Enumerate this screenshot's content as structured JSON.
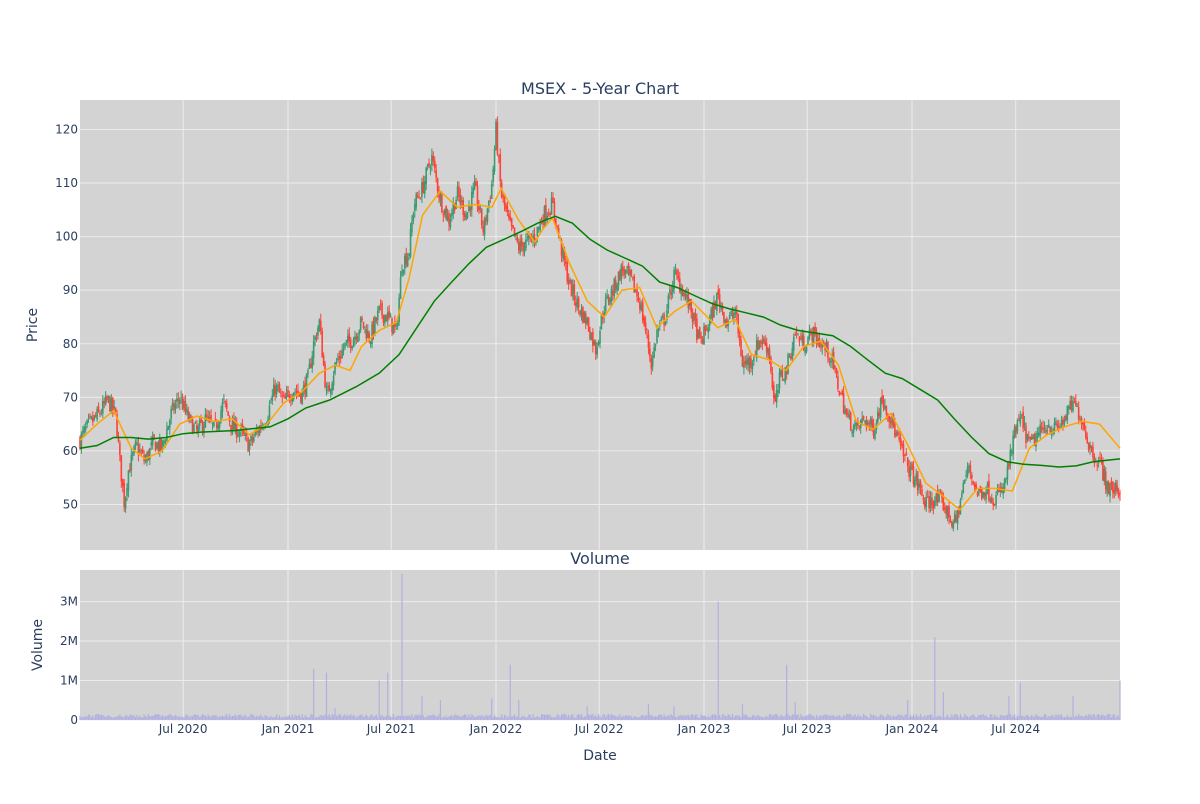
{
  "chart_data": [
    {
      "type": "candlestick",
      "title": "MSEX - 5-Year Chart",
      "ylabel": "Price",
      "ylim": [
        41.5,
        125.5
      ],
      "yticks": [
        50,
        60,
        70,
        80,
        90,
        100,
        110,
        120
      ],
      "x_range": [
        "2020-01-02",
        "2024-12-31"
      ],
      "grid": true,
      "plot_background": "#d3d3d3",
      "colors": {
        "up": "#3d9970",
        "down": "#ff4136",
        "ma_short": "#ffa500",
        "ma_long": "#008000"
      },
      "close_path": [
        [
          "2020-01-02",
          62.0
        ],
        [
          "2020-01-15",
          64.5
        ],
        [
          "2020-02-05",
          67.0
        ],
        [
          "2020-02-20",
          69.5
        ],
        [
          "2020-03-05",
          66.5
        ],
        [
          "2020-03-12",
          58.0
        ],
        [
          "2020-03-20",
          50.0
        ],
        [
          "2020-03-26",
          56.0
        ],
        [
          "2020-04-10",
          61.0
        ],
        [
          "2020-04-25",
          58.0
        ],
        [
          "2020-05-10",
          61.5
        ],
        [
          "2020-05-25",
          60.5
        ],
        [
          "2020-06-10",
          67.0
        ],
        [
          "2020-06-25",
          70.0
        ],
        [
          "2020-07-10",
          66.0
        ],
        [
          "2020-07-25",
          63.5
        ],
        [
          "2020-08-10",
          66.0
        ],
        [
          "2020-08-25",
          64.0
        ],
        [
          "2020-09-10",
          69.0
        ],
        [
          "2020-09-25",
          64.5
        ],
        [
          "2020-10-10",
          63.5
        ],
        [
          "2020-10-25",
          61.0
        ],
        [
          "2020-11-10",
          64.0
        ],
        [
          "2020-11-25",
          66.5
        ],
        [
          "2020-12-10",
          72.0
        ],
        [
          "2020-12-25",
          69.0
        ],
        [
          "2021-01-10",
          71.5
        ],
        [
          "2021-01-25",
          70.5
        ],
        [
          "2021-02-05",
          73.5
        ],
        [
          "2021-02-15",
          80.0
        ],
        [
          "2021-02-25",
          84.0
        ],
        [
          "2021-03-10",
          70.0
        ],
        [
          "2021-03-25",
          76.0
        ],
        [
          "2021-04-10",
          79.5
        ],
        [
          "2021-04-25",
          81.0
        ],
        [
          "2021-05-10",
          84.0
        ],
        [
          "2021-05-25",
          81.0
        ],
        [
          "2021-06-10",
          86.0
        ],
        [
          "2021-06-25",
          85.0
        ],
        [
          "2021-07-10",
          82.0
        ],
        [
          "2021-07-20",
          95.0
        ],
        [
          "2021-08-01",
          97.0
        ],
        [
          "2021-08-10",
          106.0
        ],
        [
          "2021-08-25",
          109.0
        ],
        [
          "2021-09-10",
          115.0
        ],
        [
          "2021-09-25",
          107.0
        ],
        [
          "2021-10-10",
          103.0
        ],
        [
          "2021-10-25",
          108.0
        ],
        [
          "2021-11-10",
          104.0
        ],
        [
          "2021-11-25",
          109.0
        ],
        [
          "2021-12-10",
          101.0
        ],
        [
          "2021-12-25",
          110.0
        ],
        [
          "2022-01-01",
          120.0
        ],
        [
          "2022-01-10",
          108.0
        ],
        [
          "2022-01-25",
          102.0
        ],
        [
          "2022-02-10",
          98.0
        ],
        [
          "2022-02-25",
          99.0
        ],
        [
          "2022-03-10",
          100.0
        ],
        [
          "2022-03-25",
          104.0
        ],
        [
          "2022-04-10",
          106.0
        ],
        [
          "2022-04-25",
          98.0
        ],
        [
          "2022-05-10",
          91.0
        ],
        [
          "2022-05-25",
          87.0
        ],
        [
          "2022-06-10",
          84.0
        ],
        [
          "2022-06-25",
          79.0
        ],
        [
          "2022-07-10",
          87.0
        ],
        [
          "2022-07-25",
          90.0
        ],
        [
          "2022-08-10",
          94.0
        ],
        [
          "2022-08-25",
          92.0
        ],
        [
          "2022-09-10",
          88.0
        ],
        [
          "2022-09-25",
          80.0
        ],
        [
          "2022-10-01",
          76.0
        ],
        [
          "2022-10-10",
          82.0
        ],
        [
          "2022-10-25",
          85.0
        ],
        [
          "2022-11-10",
          93.0
        ],
        [
          "2022-11-25",
          90.0
        ],
        [
          "2022-12-10",
          86.0
        ],
        [
          "2022-12-25",
          80.0
        ],
        [
          "2023-01-10",
          84.0
        ],
        [
          "2023-01-25",
          89.0
        ],
        [
          "2023-02-10",
          84.0
        ],
        [
          "2023-02-25",
          86.0
        ],
        [
          "2023-03-10",
          76.0
        ],
        [
          "2023-03-25",
          77.0
        ],
        [
          "2023-04-10",
          81.0
        ],
        [
          "2023-04-25",
          79.0
        ],
        [
          "2023-05-05",
          68.0
        ],
        [
          "2023-05-15",
          74.0
        ],
        [
          "2023-05-25",
          75.0
        ],
        [
          "2023-06-10",
          82.0
        ],
        [
          "2023-06-25",
          80.0
        ],
        [
          "2023-07-10",
          82.0
        ],
        [
          "2023-07-25",
          80.0
        ],
        [
          "2023-08-10",
          78.0
        ],
        [
          "2023-08-25",
          72.0
        ],
        [
          "2023-09-10",
          66.0
        ],
        [
          "2023-09-25",
          64.0
        ],
        [
          "2023-10-10",
          66.0
        ],
        [
          "2023-10-25",
          64.0
        ],
        [
          "2023-11-10",
          70.0
        ],
        [
          "2023-11-25",
          66.0
        ],
        [
          "2023-12-10",
          61.0
        ],
        [
          "2023-12-25",
          57.0
        ],
        [
          "2024-01-10",
          54.0
        ],
        [
          "2024-01-25",
          50.0
        ],
        [
          "2024-02-10",
          51.0
        ],
        [
          "2024-02-25",
          50.0
        ],
        [
          "2024-03-10",
          47.0
        ],
        [
          "2024-03-18",
          46.5
        ],
        [
          "2024-04-01",
          54.0
        ],
        [
          "2024-04-10",
          57.0
        ],
        [
          "2024-04-25",
          52.0
        ],
        [
          "2024-05-10",
          53.0
        ],
        [
          "2024-05-25",
          51.0
        ],
        [
          "2024-06-10",
          53.0
        ],
        [
          "2024-06-20",
          58.0
        ],
        [
          "2024-07-01",
          64.0
        ],
        [
          "2024-07-10",
          66.0
        ],
        [
          "2024-07-25",
          61.0
        ],
        [
          "2024-08-10",
          63.0
        ],
        [
          "2024-08-25",
          65.0
        ],
        [
          "2024-09-10",
          64.0
        ],
        [
          "2024-09-25",
          66.0
        ],
        [
          "2024-10-10",
          69.0
        ],
        [
          "2024-10-25",
          66.0
        ],
        [
          "2024-11-10",
          60.0
        ],
        [
          "2024-11-25",
          58.0
        ],
        [
          "2024-12-10",
          53.0
        ],
        [
          "2024-12-31",
          52.5
        ]
      ],
      "ma_short_path": [
        [
          "2020-01-02",
          62.0
        ],
        [
          "2020-02-01",
          65.0
        ],
        [
          "2020-03-01",
          67.5
        ],
        [
          "2020-04-01",
          60.5
        ],
        [
          "2020-04-25",
          58.5
        ],
        [
          "2020-05-25",
          60.0
        ],
        [
          "2020-06-25",
          65.0
        ],
        [
          "2020-07-25",
          66.5
        ],
        [
          "2020-08-25",
          65.5
        ],
        [
          "2020-09-25",
          66.0
        ],
        [
          "2020-10-25",
          63.0
        ],
        [
          "2020-11-25",
          65.0
        ],
        [
          "2020-12-25",
          69.0
        ],
        [
          "2021-01-25",
          71.0
        ],
        [
          "2021-02-25",
          74.5
        ],
        [
          "2021-03-25",
          76.0
        ],
        [
          "2021-04-20",
          75.0
        ],
        [
          "2021-05-10",
          79.5
        ],
        [
          "2021-06-10",
          82.5
        ],
        [
          "2021-07-10",
          84.0
        ],
        [
          "2021-08-01",
          92.0
        ],
        [
          "2021-08-25",
          104.0
        ],
        [
          "2021-09-25",
          108.5
        ],
        [
          "2021-10-25",
          105.5
        ],
        [
          "2021-11-25",
          106.0
        ],
        [
          "2021-12-25",
          105.5
        ],
        [
          "2022-01-10",
          109.0
        ],
        [
          "2022-02-10",
          103.0
        ],
        [
          "2022-03-10",
          99.0
        ],
        [
          "2022-03-25",
          101.5
        ],
        [
          "2022-04-10",
          103.5
        ],
        [
          "2022-05-10",
          95.0
        ],
        [
          "2022-06-10",
          88.0
        ],
        [
          "2022-07-10",
          85.0
        ],
        [
          "2022-08-10",
          90.0
        ],
        [
          "2022-09-10",
          90.5
        ],
        [
          "2022-10-10",
          83.0
        ],
        [
          "2022-11-10",
          86.0
        ],
        [
          "2022-12-10",
          88.0
        ],
        [
          "2023-01-25",
          83.0
        ],
        [
          "2023-02-25",
          84.5
        ],
        [
          "2023-03-25",
          78.0
        ],
        [
          "2023-04-25",
          77.0
        ],
        [
          "2023-05-25",
          75.0
        ],
        [
          "2023-06-25",
          79.5
        ],
        [
          "2023-07-25",
          80.5
        ],
        [
          "2023-08-25",
          76.0
        ],
        [
          "2023-09-25",
          65.5
        ],
        [
          "2023-10-25",
          64.0
        ],
        [
          "2023-11-25",
          67.0
        ],
        [
          "2023-12-25",
          61.0
        ],
        [
          "2024-01-25",
          54.0
        ],
        [
          "2024-02-25",
          51.5
        ],
        [
          "2024-03-25",
          49.0
        ],
        [
          "2024-04-25",
          53.0
        ],
        [
          "2024-05-25",
          53.0
        ],
        [
          "2024-06-25",
          52.5
        ],
        [
          "2024-07-25",
          60.5
        ],
        [
          "2024-08-25",
          63.0
        ],
        [
          "2024-09-25",
          64.5
        ],
        [
          "2024-10-25",
          65.5
        ],
        [
          "2024-11-25",
          65.0
        ],
        [
          "2024-12-31",
          60.5
        ]
      ],
      "ma_long_path": [
        [
          "2020-01-02",
          60.5
        ],
        [
          "2020-02-01",
          61.0
        ],
        [
          "2020-03-01",
          62.5
        ],
        [
          "2020-04-01",
          62.5
        ],
        [
          "2020-05-01",
          62.2
        ],
        [
          "2020-06-01",
          62.5
        ],
        [
          "2020-07-01",
          63.2
        ],
        [
          "2020-08-01",
          63.5
        ],
        [
          "2020-10-01",
          63.8
        ],
        [
          "2020-12-01",
          64.5
        ],
        [
          "2021-01-01",
          66.0
        ],
        [
          "2021-02-01",
          68.0
        ],
        [
          "2021-03-15",
          69.5
        ],
        [
          "2021-05-01",
          72.0
        ],
        [
          "2021-06-10",
          74.5
        ],
        [
          "2021-07-15",
          78.0
        ],
        [
          "2021-08-15",
          83.0
        ],
        [
          "2021-09-15",
          88.0
        ],
        [
          "2021-10-15",
          91.5
        ],
        [
          "2021-11-15",
          95.0
        ],
        [
          "2021-12-15",
          98.0
        ],
        [
          "2022-01-15",
          99.5
        ],
        [
          "2022-02-15",
          101.0
        ],
        [
          "2022-03-15",
          102.5
        ],
        [
          "2022-04-15",
          103.8
        ],
        [
          "2022-05-15",
          102.5
        ],
        [
          "2022-06-15",
          99.5
        ],
        [
          "2022-07-15",
          97.5
        ],
        [
          "2022-08-15",
          96.0
        ],
        [
          "2022-09-15",
          94.5
        ],
        [
          "2022-10-15",
          91.5
        ],
        [
          "2022-11-15",
          90.5
        ],
        [
          "2022-12-15",
          89.0
        ],
        [
          "2023-01-15",
          87.5
        ],
        [
          "2023-02-15",
          86.5
        ],
        [
          "2023-03-15",
          85.8
        ],
        [
          "2023-04-15",
          85.0
        ],
        [
          "2023-05-15",
          83.5
        ],
        [
          "2023-06-15",
          82.5
        ],
        [
          "2023-07-15",
          82.0
        ],
        [
          "2023-08-15",
          81.5
        ],
        [
          "2023-09-15",
          79.5
        ],
        [
          "2023-10-15",
          77.0
        ],
        [
          "2023-11-15",
          74.5
        ],
        [
          "2023-12-15",
          73.5
        ],
        [
          "2024-01-15",
          71.5
        ],
        [
          "2024-02-15",
          69.5
        ],
        [
          "2024-03-15",
          66.0
        ],
        [
          "2024-04-15",
          62.5
        ],
        [
          "2024-05-15",
          59.5
        ],
        [
          "2024-06-15",
          58.0
        ],
        [
          "2024-07-15",
          57.5
        ],
        [
          "2024-08-15",
          57.3
        ],
        [
          "2024-09-15",
          57.0
        ],
        [
          "2024-10-15",
          57.2
        ],
        [
          "2024-11-15",
          58.0
        ],
        [
          "2024-12-31",
          58.5
        ]
      ]
    },
    {
      "type": "bar",
      "title": "Volume",
      "xlabel": "Date",
      "ylabel": "Volume",
      "ylim": [
        0,
        3800000
      ],
      "yticks": [
        0,
        1000000,
        2000000,
        3000000
      ],
      "ytick_labels": [
        "0",
        "1M",
        "2M",
        "3M"
      ],
      "xticks": [
        "2020-07-01",
        "2021-01-01",
        "2021-07-01",
        "2022-01-01",
        "2022-07-01",
        "2023-01-01",
        "2023-07-01",
        "2024-01-01",
        "2024-07-01"
      ],
      "xtick_labels": [
        "Jul 2020",
        "Jan 2021",
        "Jul 2021",
        "Jan 2022",
        "Jul 2022",
        "Jan 2023",
        "Jul 2023",
        "Jan 2024",
        "Jul 2024"
      ],
      "bar_color": "#b0b0e0",
      "baseline_volume": 120000,
      "spikes": [
        [
          "2021-02-15",
          1300000
        ],
        [
          "2021-03-10",
          1200000
        ],
        [
          "2021-03-25",
          300000
        ],
        [
          "2021-06-10",
          1000000
        ],
        [
          "2021-06-25",
          1200000
        ],
        [
          "2021-07-20",
          3700000
        ],
        [
          "2021-08-25",
          600000
        ],
        [
          "2021-09-25",
          500000
        ],
        [
          "2021-12-25",
          550000
        ],
        [
          "2022-01-25",
          1400000
        ],
        [
          "2022-02-10",
          500000
        ],
        [
          "2022-06-10",
          350000
        ],
        [
          "2022-09-25",
          400000
        ],
        [
          "2022-11-10",
          350000
        ],
        [
          "2023-01-25",
          3000000
        ],
        [
          "2023-03-10",
          400000
        ],
        [
          "2023-05-25",
          1400000
        ],
        [
          "2023-06-10",
          450000
        ],
        [
          "2023-12-25",
          500000
        ],
        [
          "2024-02-10",
          2100000
        ],
        [
          "2024-02-25",
          700000
        ],
        [
          "2024-06-20",
          600000
        ],
        [
          "2024-07-10",
          950000
        ],
        [
          "2024-10-10",
          600000
        ],
        [
          "2024-12-31",
          1000000
        ]
      ]
    }
  ]
}
